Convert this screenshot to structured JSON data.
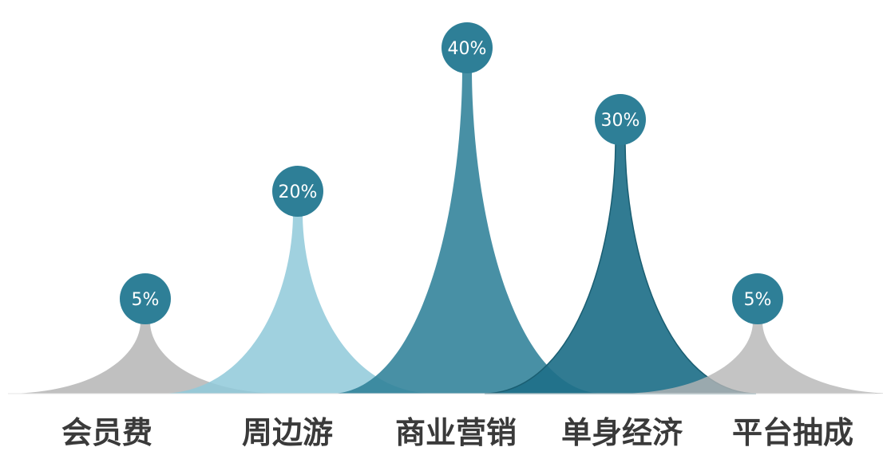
{
  "chart_data": {
    "type": "area",
    "title": "",
    "xlabel": "",
    "ylabel": "",
    "ylim": [
      0,
      45
    ],
    "grid": false,
    "legend": "none",
    "categories": [
      "会员费",
      "周边游",
      "商业营销",
      "单身经济",
      "平台抽成"
    ],
    "values": [
      5,
      20,
      40,
      30,
      5
    ],
    "value_labels": [
      "5%",
      "20%",
      "40%",
      "30%",
      "5%"
    ],
    "colors": [
      "#b5b5b5",
      "#8fc9d9",
      "#2f8198",
      "#1f7089",
      "#b5b5b5"
    ],
    "badge_color": "#2e7f97"
  }
}
